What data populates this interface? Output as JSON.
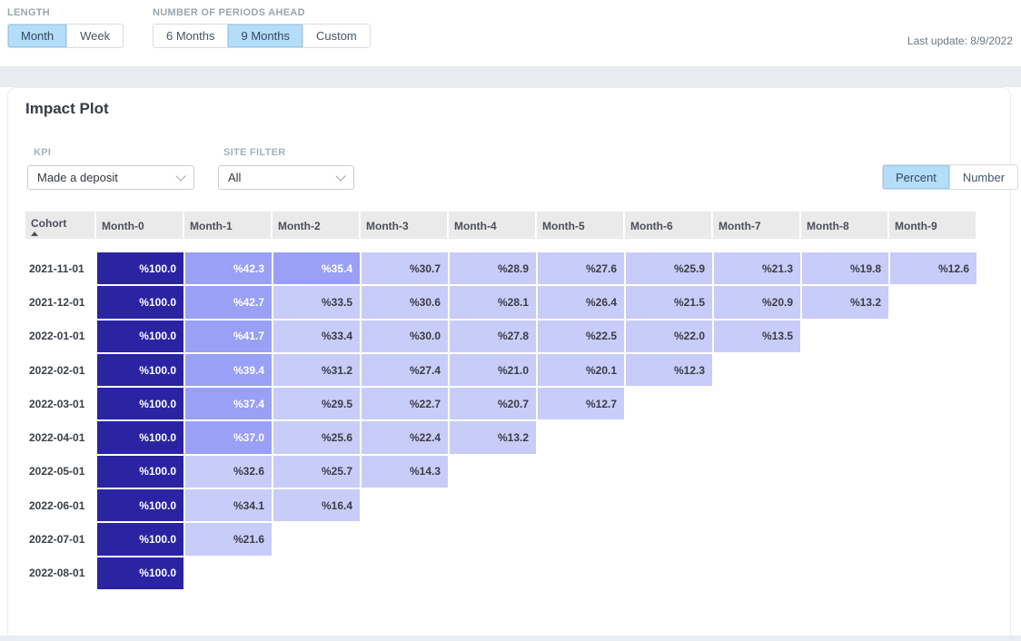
{
  "controls": {
    "length": {
      "label": "LENGTH",
      "options": [
        "Month",
        "Week"
      ],
      "selected": "Month"
    },
    "periods_ahead": {
      "label": "NUMBER OF PERIODS AHEAD",
      "options": [
        "6 Months",
        "9 Months",
        "Custom"
      ],
      "selected": "9 Months"
    },
    "last_update": "Last update: 8/9/2022"
  },
  "panel": {
    "title": "Impact Plot",
    "kpi": {
      "label": "KPI",
      "value": "Made a deposit"
    },
    "site_filter": {
      "label": "SITE FILTER",
      "value": "All"
    },
    "unit_toggle": {
      "options": [
        "Percent",
        "Number"
      ],
      "selected": "Percent"
    }
  },
  "colors": {
    "selected_toggle_bg": "#b4ddf9",
    "selected_toggle_border": "#93cbf5",
    "header_bg": "#eaeaea"
  },
  "table": {
    "columns": [
      "Cohort",
      "Month-0",
      "Month-1",
      "Month-2",
      "Month-3",
      "Month-4",
      "Month-5",
      "Month-6",
      "Month-7",
      "Month-8",
      "Month-9"
    ],
    "sorted_by": {
      "column": "Cohort",
      "direction": "ascending"
    },
    "value_prefix": "%",
    "heat_scale": {
      "full_value": 100,
      "full_color": "#2a24a3",
      "high_threshold": 35,
      "high_color": "#9aa0f5",
      "low_color": "#c8ccf8",
      "low_text_color": "#3c3c46",
      "high_text_color": "#ffffff"
    },
    "rows": [
      {
        "cohort": "2021-11-01",
        "values": [
          100.0,
          42.3,
          35.4,
          30.7,
          28.9,
          27.6,
          25.9,
          21.3,
          19.8,
          12.6
        ]
      },
      {
        "cohort": "2021-12-01",
        "values": [
          100.0,
          42.7,
          33.5,
          30.6,
          28.1,
          26.4,
          21.5,
          20.9,
          13.2
        ]
      },
      {
        "cohort": "2022-01-01",
        "values": [
          100.0,
          41.7,
          33.4,
          30.0,
          27.8,
          22.5,
          22.0,
          13.5
        ]
      },
      {
        "cohort": "2022-02-01",
        "values": [
          100.0,
          39.4,
          31.2,
          27.4,
          21.0,
          20.1,
          12.3
        ]
      },
      {
        "cohort": "2022-03-01",
        "values": [
          100.0,
          37.4,
          29.5,
          22.7,
          20.7,
          12.7
        ]
      },
      {
        "cohort": "2022-04-01",
        "values": [
          100.0,
          37.0,
          25.6,
          22.4,
          13.2
        ]
      },
      {
        "cohort": "2022-05-01",
        "values": [
          100.0,
          32.6,
          25.7,
          14.3
        ]
      },
      {
        "cohort": "2022-06-01",
        "values": [
          100.0,
          34.1,
          16.4
        ]
      },
      {
        "cohort": "2022-07-01",
        "values": [
          100.0,
          21.6
        ]
      },
      {
        "cohort": "2022-08-01",
        "values": [
          100.0
        ]
      }
    ]
  }
}
